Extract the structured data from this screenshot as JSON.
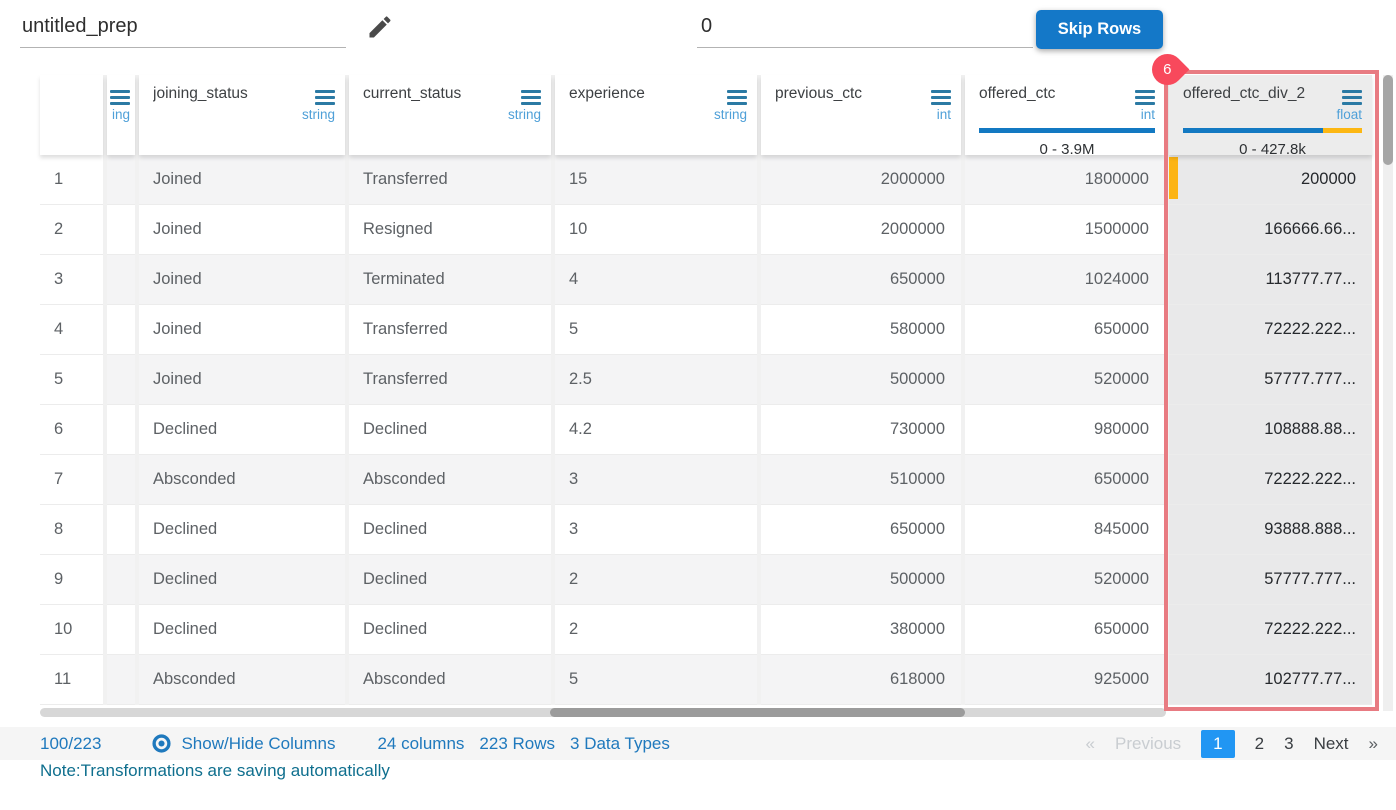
{
  "topbar": {
    "prep_name": "untitled_prep",
    "skip_rows_value": "0",
    "skip_rows_button": "Skip Rows"
  },
  "table": {
    "columns": [
      {
        "name": "",
        "type": "ing"
      },
      {
        "name": "joining_status",
        "type": "string"
      },
      {
        "name": "current_status",
        "type": "string"
      },
      {
        "name": "experience",
        "type": "string"
      },
      {
        "name": "previous_ctc",
        "type": "int"
      },
      {
        "name": "offered_ctc",
        "type": "int",
        "range": "0 - 3.9M",
        "bar": {
          "blue_pct": 100,
          "yellow_pct": 0
        }
      },
      {
        "name": "offered_ctc_div_2",
        "type": "float",
        "range": "0 - 427.8k",
        "bar": {
          "blue_pct": 78,
          "yellow_pct": 22
        },
        "badge": "6",
        "highlighted": true
      }
    ],
    "rows": [
      {
        "n": "1",
        "joining_status": "Joined",
        "current_status": "Transferred",
        "experience": "15",
        "previous_ctc": "2000000",
        "offered_ctc": "1800000",
        "offered_ctc_div_2": "200000",
        "marker": true
      },
      {
        "n": "2",
        "joining_status": "Joined",
        "current_status": "Resigned",
        "experience": "10",
        "previous_ctc": "2000000",
        "offered_ctc": "1500000",
        "offered_ctc_div_2": "166666.66..."
      },
      {
        "n": "3",
        "joining_status": "Joined",
        "current_status": "Terminated",
        "experience": "4",
        "previous_ctc": "650000",
        "offered_ctc": "1024000",
        "offered_ctc_div_2": "113777.77..."
      },
      {
        "n": "4",
        "joining_status": "Joined",
        "current_status": "Transferred",
        "experience": "5",
        "previous_ctc": "580000",
        "offered_ctc": "650000",
        "offered_ctc_div_2": "72222.222..."
      },
      {
        "n": "5",
        "joining_status": "Joined",
        "current_status": "Transferred",
        "experience": "2.5",
        "previous_ctc": "500000",
        "offered_ctc": "520000",
        "offered_ctc_div_2": "57777.777..."
      },
      {
        "n": "6",
        "joining_status": "Declined",
        "current_status": "Declined",
        "experience": "4.2",
        "previous_ctc": "730000",
        "offered_ctc": "980000",
        "offered_ctc_div_2": "108888.88..."
      },
      {
        "n": "7",
        "joining_status": "Absconded",
        "current_status": "Absconded",
        "experience": "3",
        "previous_ctc": "510000",
        "offered_ctc": "650000",
        "offered_ctc_div_2": "72222.222..."
      },
      {
        "n": "8",
        "joining_status": "Declined",
        "current_status": "Declined",
        "experience": "3",
        "previous_ctc": "650000",
        "offered_ctc": "845000",
        "offered_ctc_div_2": "93888.888..."
      },
      {
        "n": "9",
        "joining_status": "Declined",
        "current_status": "Declined",
        "experience": "2",
        "previous_ctc": "500000",
        "offered_ctc": "520000",
        "offered_ctc_div_2": "57777.777..."
      },
      {
        "n": "10",
        "joining_status": "Declined",
        "current_status": "Declined",
        "experience": "2",
        "previous_ctc": "380000",
        "offered_ctc": "650000",
        "offered_ctc_div_2": "72222.222..."
      },
      {
        "n": "11",
        "joining_status": "Absconded",
        "current_status": "Absconded",
        "experience": "5",
        "previous_ctc": "618000",
        "offered_ctc": "925000",
        "offered_ctc_div_2": "102777.77..."
      }
    ]
  },
  "footer": {
    "visible_count": "100/223",
    "show_hide_label": "Show/Hide Columns",
    "columns_count": "24 columns",
    "rows_count": "223 Rows",
    "data_types": "3 Data Types",
    "pagination": {
      "first": "«",
      "previous": "Previous",
      "pages": [
        "1",
        "2",
        "3"
      ],
      "active": "1",
      "next": "Next",
      "last": "»"
    },
    "note": "Note:Transformations are saving automatically"
  },
  "colors": {
    "accent_blue": "#1478c8",
    "bar_blue": "#1379c2",
    "bar_yellow": "#fcb713",
    "badge_red": "#f8495c",
    "highlight_border": "#e87b82",
    "link_blue": "#1f79bd",
    "active_page_blue": "#2196f3",
    "type_label_blue": "#4fa0d8",
    "note_teal": "#0f6f8e"
  }
}
